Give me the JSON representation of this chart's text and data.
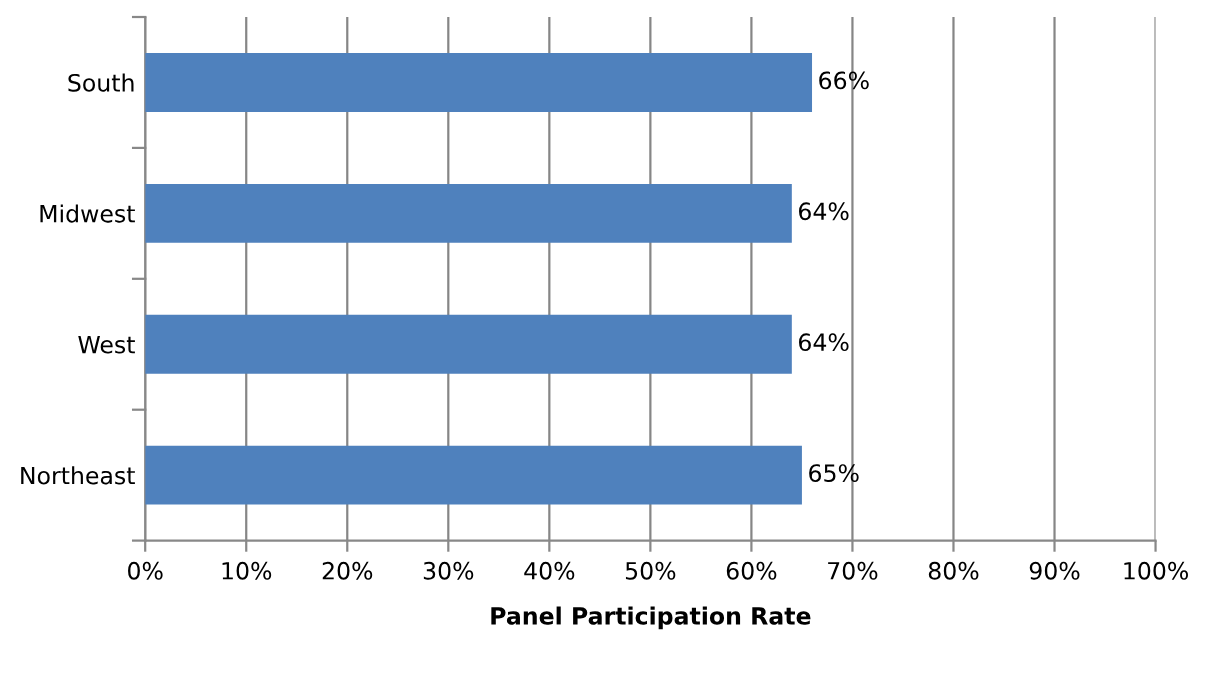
{
  "chart_data": {
    "type": "bar",
    "orientation": "horizontal",
    "xlabel": "Panel Participation Rate",
    "categories": [
      "South",
      "Midwest",
      "West",
      "Northeast"
    ],
    "values": [
      66,
      64,
      64,
      65
    ],
    "color": "#4f81bd",
    "value_labels": [
      "66%",
      "64%",
      "64%",
      "65%"
    ],
    "xlim": [
      0,
      100
    ],
    "xticks": [
      {
        "value": 0,
        "label": "0%"
      },
      {
        "value": 10,
        "label": "10%"
      },
      {
        "value": 20,
        "label": "20%"
      },
      {
        "value": 30,
        "label": "30%"
      },
      {
        "value": 40,
        "label": "40%"
      },
      {
        "value": 50,
        "label": "50%"
      },
      {
        "value": 60,
        "label": "60%"
      },
      {
        "value": 70,
        "label": "70%"
      },
      {
        "value": 80,
        "label": "80%"
      },
      {
        "value": 90,
        "label": "90%"
      },
      {
        "value": 100,
        "label": "100%"
      }
    ],
    "grid": "x",
    "legend": false
  }
}
